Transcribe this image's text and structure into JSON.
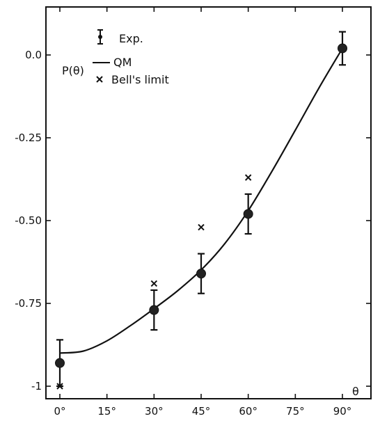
{
  "chart_data": {
    "type": "scatter",
    "ylabel": "P(θ)",
    "xlabel": "θ",
    "xlim": [
      0,
      90
    ],
    "ylim": [
      -1,
      0.1
    ],
    "grid": false,
    "legend_position": "top-left",
    "x_ticks": [
      {
        "value": 0,
        "label": "0°"
      },
      {
        "value": 15,
        "label": "15°"
      },
      {
        "value": 30,
        "label": "30°"
      },
      {
        "value": 45,
        "label": "45°"
      },
      {
        "value": 60,
        "label": "60°"
      },
      {
        "value": 75,
        "label": "75°"
      },
      {
        "value": 90,
        "label": "90°"
      }
    ],
    "y_ticks": [
      {
        "value": 0.0,
        "label": "0.0"
      },
      {
        "value": -0.25,
        "label": "-0.25"
      },
      {
        "value": -0.5,
        "label": "-0.50"
      },
      {
        "value": -0.75,
        "label": "-0.75"
      },
      {
        "value": -1,
        "label": "-1"
      }
    ],
    "legend": {
      "experiment": "Exp.",
      "theory": "QM",
      "bell": "Bell's limit"
    },
    "series": [
      {
        "name": "Exp.",
        "kind": "points-with-errorbars",
        "points": [
          {
            "x": 0,
            "y": -0.93,
            "err": 0.07
          },
          {
            "x": 30,
            "y": -0.77,
            "err": 0.06
          },
          {
            "x": 45,
            "y": -0.66,
            "err": 0.06
          },
          {
            "x": 60,
            "y": -0.48,
            "err": 0.06
          },
          {
            "x": 90,
            "y": 0.02,
            "err": 0.05
          }
        ]
      },
      {
        "name": "QM",
        "kind": "line",
        "points": [
          {
            "x": 0,
            "y": -0.9
          },
          {
            "x": 7.5,
            "y": -0.894
          },
          {
            "x": 15,
            "y": -0.863
          },
          {
            "x": 22.5,
            "y": -0.817
          },
          {
            "x": 30,
            "y": -0.766
          },
          {
            "x": 37.5,
            "y": -0.712
          },
          {
            "x": 45,
            "y": -0.649
          },
          {
            "x": 52.5,
            "y": -0.57
          },
          {
            "x": 60,
            "y": -0.47
          },
          {
            "x": 67.5,
            "y": -0.352
          },
          {
            "x": 75,
            "y": -0.227
          },
          {
            "x": 82.5,
            "y": -0.1
          },
          {
            "x": 90,
            "y": 0.02
          }
        ]
      },
      {
        "name": "Bell's limit",
        "kind": "markers-x",
        "points": [
          {
            "x": 0,
            "y": -1.0
          },
          {
            "x": 30,
            "y": -0.69
          },
          {
            "x": 45,
            "y": -0.52
          },
          {
            "x": 60,
            "y": -0.37
          }
        ]
      }
    ]
  },
  "colors": {
    "ink": "#111111",
    "background": "#ffffff"
  }
}
